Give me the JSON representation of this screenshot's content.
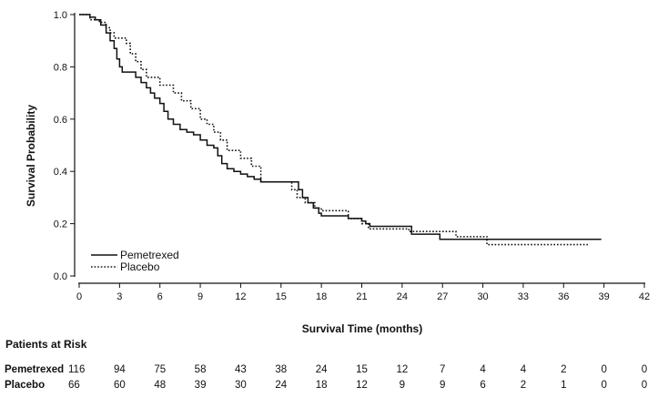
{
  "chart_data": {
    "type": "line",
    "title": "",
    "xlabel": "Survival Time (months)",
    "ylabel": "Survival Probability",
    "xlim": [
      0,
      42
    ],
    "ylim": [
      0,
      1.0
    ],
    "xticks": [
      0,
      3,
      6,
      9,
      12,
      15,
      18,
      21,
      24,
      27,
      30,
      33,
      36,
      39,
      42
    ],
    "yticks": [
      0.0,
      0.2,
      0.4,
      0.6,
      0.8,
      1.0
    ],
    "ytick_labels": [
      "0.0",
      "0.2",
      "0.4",
      "0.6",
      "0.8",
      "1.0"
    ],
    "grid": false,
    "legend": "lower-left",
    "series": [
      {
        "name": "Pemetrexed",
        "style": "solid",
        "points": [
          [
            0,
            1.0
          ],
          [
            0.7,
            1.0
          ],
          [
            0.8,
            0.99
          ],
          [
            1.2,
            0.98
          ],
          [
            1.6,
            0.96
          ],
          [
            2.0,
            0.93
          ],
          [
            2.3,
            0.9
          ],
          [
            2.6,
            0.87
          ],
          [
            2.8,
            0.83
          ],
          [
            3.0,
            0.8
          ],
          [
            3.2,
            0.78
          ],
          [
            4.0,
            0.78
          ],
          [
            4.2,
            0.76
          ],
          [
            4.6,
            0.74
          ],
          [
            5.0,
            0.72
          ],
          [
            5.3,
            0.7
          ],
          [
            5.6,
            0.68
          ],
          [
            6.0,
            0.66
          ],
          [
            6.3,
            0.63
          ],
          [
            6.6,
            0.6
          ],
          [
            7.0,
            0.58
          ],
          [
            7.5,
            0.56
          ],
          [
            8.0,
            0.55
          ],
          [
            8.5,
            0.54
          ],
          [
            9.0,
            0.52
          ],
          [
            9.5,
            0.5
          ],
          [
            10.0,
            0.49
          ],
          [
            10.3,
            0.46
          ],
          [
            10.6,
            0.43
          ],
          [
            11.0,
            0.41
          ],
          [
            11.5,
            0.4
          ],
          [
            12.0,
            0.39
          ],
          [
            12.5,
            0.38
          ],
          [
            13.0,
            0.37
          ],
          [
            13.5,
            0.36
          ],
          [
            16.0,
            0.36
          ],
          [
            16.3,
            0.33
          ],
          [
            16.6,
            0.3
          ],
          [
            17.0,
            0.28
          ],
          [
            17.4,
            0.26
          ],
          [
            17.8,
            0.24
          ],
          [
            18.0,
            0.23
          ],
          [
            19.5,
            0.23
          ],
          [
            20.0,
            0.22
          ],
          [
            21.0,
            0.21
          ],
          [
            21.3,
            0.2
          ],
          [
            21.6,
            0.19
          ],
          [
            24.5,
            0.19
          ],
          [
            24.7,
            0.16
          ],
          [
            26.5,
            0.16
          ],
          [
            26.8,
            0.14
          ],
          [
            38.8,
            0.14
          ]
        ]
      },
      {
        "name": "Placebo",
        "style": "dotted",
        "points": [
          [
            0,
            1.0
          ],
          [
            0.5,
            1.0
          ],
          [
            0.8,
            0.98
          ],
          [
            1.5,
            0.97
          ],
          [
            2.0,
            0.95
          ],
          [
            2.3,
            0.93
          ],
          [
            2.6,
            0.91
          ],
          [
            3.5,
            0.89
          ],
          [
            3.8,
            0.85
          ],
          [
            4.2,
            0.82
          ],
          [
            4.6,
            0.79
          ],
          [
            5.0,
            0.76
          ],
          [
            6.0,
            0.73
          ],
          [
            7.0,
            0.7
          ],
          [
            7.6,
            0.67
          ],
          [
            8.3,
            0.64
          ],
          [
            9.0,
            0.6
          ],
          [
            9.5,
            0.58
          ],
          [
            10.0,
            0.55
          ],
          [
            10.5,
            0.52
          ],
          [
            11.0,
            0.48
          ],
          [
            12.0,
            0.45
          ],
          [
            12.8,
            0.42
          ],
          [
            13.5,
            0.36
          ],
          [
            15.5,
            0.36
          ],
          [
            15.8,
            0.33
          ],
          [
            16.2,
            0.3
          ],
          [
            16.8,
            0.28
          ],
          [
            17.5,
            0.26
          ],
          [
            18.0,
            0.25
          ],
          [
            20.0,
            0.22
          ],
          [
            21.0,
            0.2
          ],
          [
            21.5,
            0.18
          ],
          [
            24.0,
            0.18
          ],
          [
            24.5,
            0.17
          ],
          [
            27.0,
            0.17
          ],
          [
            28.0,
            0.15
          ],
          [
            30.0,
            0.15
          ],
          [
            30.3,
            0.12
          ],
          [
            37.8,
            0.12
          ]
        ]
      }
    ],
    "risk_table": {
      "title": "Patients at Risk",
      "times": [
        0,
        3,
        6,
        9,
        12,
        15,
        18,
        21,
        24,
        27,
        30,
        33,
        36,
        39,
        42
      ],
      "rows": [
        {
          "label": "Pemetrexed",
          "values": [
            "116",
            "94",
            "75",
            "58",
            "43",
            "38",
            "24",
            "15",
            "12",
            "7",
            "4",
            "4",
            "2",
            "0",
            "0"
          ]
        },
        {
          "label": "Placebo",
          "values": [
            "66",
            "60",
            "48",
            "39",
            "30",
            "24",
            "18",
            "12",
            "9",
            "9",
            "6",
            "2",
            "1",
            "0",
            "0"
          ]
        }
      ]
    }
  }
}
